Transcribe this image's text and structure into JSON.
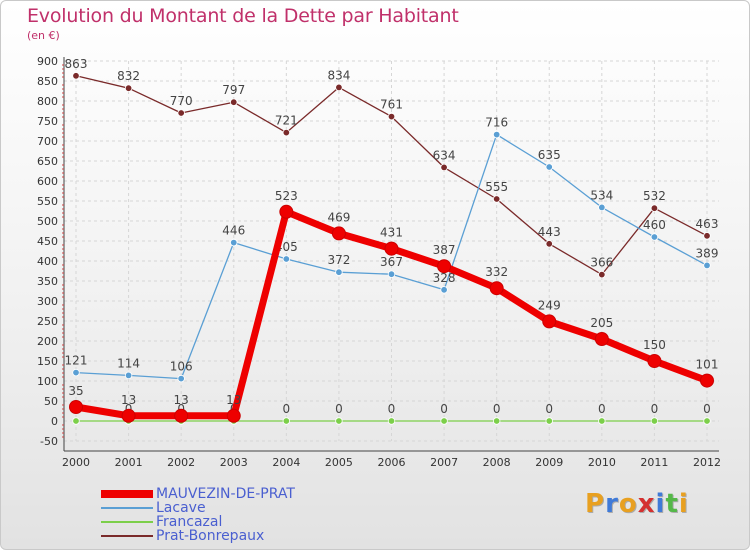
{
  "title": "Evolution du Montant de la Dette par Habitant",
  "subtitle": "(en €)",
  "logo": {
    "letters": [
      "P",
      "r",
      "o",
      "x",
      "i",
      "t",
      "i"
    ],
    "colors": [
      "#e8a020",
      "#3f7ad8",
      "#e8a020",
      "#d43030",
      "#3f7ad8",
      "#54b848",
      "#e8a020"
    ]
  },
  "chart_data": {
    "type": "line",
    "x": [
      2000,
      2001,
      2002,
      2003,
      2004,
      2005,
      2006,
      2007,
      2008,
      2009,
      2010,
      2011,
      2012
    ],
    "ylim": [
      -50,
      900
    ],
    "yticks": [
      -50,
      0,
      50,
      100,
      150,
      200,
      250,
      300,
      350,
      400,
      450,
      500,
      550,
      600,
      650,
      700,
      750,
      800,
      850,
      900
    ],
    "grid": true,
    "legend_position": "bottom-left",
    "series": [
      {
        "name": "Prat-Bonrepaux",
        "color": "#7a2a2a",
        "values": [
          863,
          832,
          770,
          797,
          721,
          834,
          761,
          634,
          555,
          443,
          366,
          532,
          463
        ]
      },
      {
        "name": "Lacave",
        "color": "#5a9fd4",
        "values": [
          121,
          114,
          106,
          446,
          405,
          372,
          367,
          328,
          716,
          635,
          534,
          460,
          389
        ]
      },
      {
        "name": "Francazal",
        "color": "#7ccf4a",
        "values": [
          0,
          0,
          0,
          0,
          0,
          0,
          0,
          0,
          0,
          0,
          0,
          0,
          0
        ]
      },
      {
        "name": "MAUVEZIN-DE-PRAT",
        "color": "#ee0000",
        "values": [
          35,
          13,
          13,
          13,
          523,
          469,
          431,
          387,
          332,
          249,
          205,
          150,
          101
        ]
      }
    ],
    "legend_order": [
      "MAUVEZIN-DE-PRAT",
      "Lacave",
      "Francazal",
      "Prat-Bonrepaux"
    ]
  }
}
